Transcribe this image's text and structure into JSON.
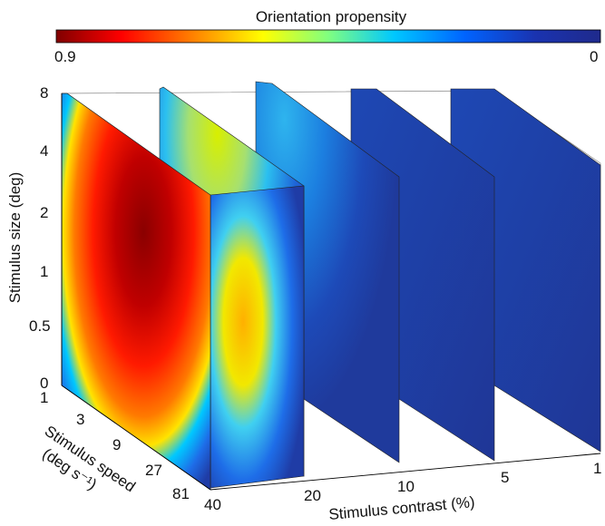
{
  "chart_data": {
    "type": "heatmap",
    "title": "",
    "colorbar": {
      "label": "Orientation propensity",
      "min_label": "0.9",
      "max_label": "0",
      "range": [
        0.9,
        0
      ],
      "colormap": [
        "#7f0000",
        "#ff0000",
        "#ff8000",
        "#ffff00",
        "#80ff80",
        "#00c8ff",
        "#0064ff",
        "#000090"
      ]
    },
    "zlabel": "Stimulus size (deg)",
    "z_ticks": [
      "0",
      "0.5",
      "1",
      "2",
      "4",
      "8"
    ],
    "ylabel": "Stimulus speed (deg s⁻¹)",
    "ylabel_lines": [
      "Stimulus speed",
      "(deg s⁻¹)"
    ],
    "y_ticks": [
      "1",
      "3",
      "9",
      "27",
      "81"
    ],
    "xlabel": "Stimulus contrast (%)",
    "x_ticks": [
      "40",
      "20",
      "10",
      "5",
      "1"
    ],
    "slices": [
      {
        "contrast": 40,
        "max_propensity": 0.9
      },
      {
        "contrast": 20,
        "max_propensity": 0.5
      },
      {
        "contrast": 10,
        "max_propensity": 0.25
      },
      {
        "contrast": 5,
        "max_propensity": 0.05
      },
      {
        "contrast": 1,
        "max_propensity": 0.02
      }
    ]
  }
}
